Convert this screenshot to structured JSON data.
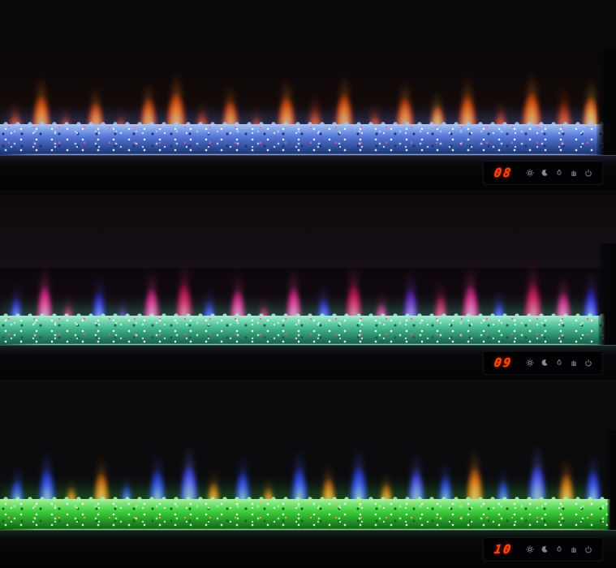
{
  "product": {
    "description": "Three wall-mounted linear electric fireplaces, stacked, showing different flame and ember-bed color settings",
    "background_color": "#0b0809"
  },
  "display_icons": [
    {
      "name": "brightness",
      "glyph": "sun-icon"
    },
    {
      "name": "timer",
      "glyph": "moon-icon"
    },
    {
      "name": "flame-effect",
      "glyph": "flame-icon"
    },
    {
      "name": "touch-lock",
      "glyph": "hand-icon"
    },
    {
      "name": "power",
      "glyph": "power-icon"
    }
  ],
  "units": [
    {
      "name": "top",
      "flame_theme": "orange-red flames",
      "bed_theme": "blue crystal ember bed",
      "display": {
        "value": "08",
        "digit_color": "#ff4512",
        "icon_color": "#97a1b2"
      },
      "colors": {
        "bed_light": "#a9c4f2",
        "bed_base": "#5578d8",
        "bed_dark": "#1d3576",
        "bed_sparkle": "#e8f2ff",
        "bed_accent": "#ff5f8f",
        "glow": "#5b86ff",
        "bed_edge": "#bcd6ff",
        "flame_palettes": [
          [
            "#ffd98a",
            "#ff8a24",
            "#9e2506"
          ],
          [
            "#ff9e55",
            "#dd4b14",
            "#5f1404"
          ],
          [
            "#ffe9b0",
            "#ffb347",
            "#b03508"
          ]
        ]
      },
      "flames": [
        [
          0.01,
          22,
          34,
          1
        ],
        [
          0.05,
          26,
          58,
          0
        ],
        [
          0.095,
          18,
          28,
          1
        ],
        [
          0.14,
          24,
          48,
          0
        ],
        [
          0.185,
          18,
          26,
          1
        ],
        [
          0.225,
          24,
          54,
          0
        ],
        [
          0.268,
          28,
          62,
          0
        ],
        [
          0.315,
          20,
          34,
          1
        ],
        [
          0.358,
          24,
          50,
          0
        ],
        [
          0.405,
          18,
          28,
          1
        ],
        [
          0.448,
          26,
          56,
          0
        ],
        [
          0.497,
          22,
          40,
          1
        ],
        [
          0.542,
          26,
          60,
          0
        ],
        [
          0.595,
          20,
          32,
          1
        ],
        [
          0.64,
          26,
          54,
          0
        ],
        [
          0.695,
          22,
          44,
          2
        ],
        [
          0.742,
          26,
          58,
          0
        ],
        [
          0.8,
          20,
          36,
          1
        ],
        [
          0.845,
          28,
          62,
          0
        ],
        [
          0.9,
          24,
          48,
          1
        ],
        [
          0.944,
          24,
          56,
          2
        ]
      ]
    },
    {
      "name": "middle",
      "flame_theme": "pink-magenta and blue-purple flames",
      "bed_theme": "teal-green crystal ember bed",
      "display": {
        "value": "09",
        "digit_color": "#ff4512",
        "icon_color": "#97a1b2"
      },
      "colors": {
        "bed_light": "#a5ecd0",
        "bed_base": "#46bb90",
        "bed_dark": "#166049",
        "bed_sparkle": "#eafff6",
        "bed_accent": "#ff4fa0",
        "glow": "#4fe0ad",
        "bed_edge": "#c4ffe8",
        "flame_palettes": [
          [
            "#ffd2ec",
            "#ff4fae",
            "#a01262"
          ],
          [
            "#ccd4ff",
            "#5752ff",
            "#1c128f"
          ],
          [
            "#ffc2d8",
            "#ef3076",
            "#7e0c3e"
          ],
          [
            "#e2ccff",
            "#8a46e8",
            "#3c1184"
          ]
        ]
      },
      "flames": [
        [
          0.015,
          18,
          46,
          1
        ],
        [
          0.058,
          22,
          62,
          0
        ],
        [
          0.1,
          16,
          34,
          2
        ],
        [
          0.148,
          20,
          54,
          1
        ],
        [
          0.19,
          14,
          30,
          3
        ],
        [
          0.232,
          22,
          58,
          0
        ],
        [
          0.283,
          24,
          66,
          2
        ],
        [
          0.328,
          18,
          40,
          1
        ],
        [
          0.372,
          22,
          56,
          0
        ],
        [
          0.418,
          16,
          32,
          2
        ],
        [
          0.462,
          22,
          60,
          0
        ],
        [
          0.512,
          20,
          44,
          1
        ],
        [
          0.558,
          24,
          64,
          2
        ],
        [
          0.608,
          18,
          36,
          0
        ],
        [
          0.652,
          22,
          58,
          3
        ],
        [
          0.702,
          20,
          48,
          2
        ],
        [
          0.748,
          24,
          62,
          0
        ],
        [
          0.798,
          18,
          40,
          1
        ],
        [
          0.848,
          26,
          66,
          2
        ],
        [
          0.9,
          22,
          52,
          0
        ],
        [
          0.945,
          22,
          58,
          1
        ]
      ]
    },
    {
      "name": "bottom",
      "flame_theme": "blue and orange flames",
      "bed_theme": "green crystal ember bed",
      "display": {
        "value": "10",
        "digit_color": "#ff4512",
        "icon_color": "#97a1b2"
      },
      "colors": {
        "bed_light": "#a4f29e",
        "bed_base": "#3ecf3e",
        "bed_dark": "#0f6a12",
        "bed_sparkle": "#e4ffe0",
        "bed_accent": "#ffac3c",
        "glow": "#44e04a",
        "bed_edge": "#c6ffc2",
        "flame_palettes": [
          [
            "#d6e4ff",
            "#4a62ff",
            "#16249a"
          ],
          [
            "#ffe2a8",
            "#ff9228",
            "#8f4206"
          ],
          [
            "#c4d0ff",
            "#6a7cff",
            "#2424a8"
          ]
        ]
      },
      "flames": [
        [
          0.015,
          20,
          42,
          0
        ],
        [
          0.06,
          24,
          58,
          0
        ],
        [
          0.105,
          16,
          30,
          1
        ],
        [
          0.15,
          22,
          52,
          1
        ],
        [
          0.195,
          16,
          34,
          0
        ],
        [
          0.24,
          24,
          56,
          0
        ],
        [
          0.29,
          26,
          64,
          2
        ],
        [
          0.335,
          18,
          38,
          1
        ],
        [
          0.38,
          22,
          54,
          0
        ],
        [
          0.425,
          16,
          30,
          1
        ],
        [
          0.47,
          24,
          60,
          0
        ],
        [
          0.52,
          20,
          44,
          1
        ],
        [
          0.565,
          26,
          62,
          0
        ],
        [
          0.615,
          18,
          36,
          1
        ],
        [
          0.66,
          24,
          56,
          2
        ],
        [
          0.71,
          20,
          48,
          0
        ],
        [
          0.755,
          24,
          60,
          1
        ],
        [
          0.805,
          18,
          40,
          0
        ],
        [
          0.855,
          26,
          64,
          2
        ],
        [
          0.905,
          22,
          50,
          1
        ],
        [
          0.948,
          22,
          56,
          0
        ]
      ]
    }
  ]
}
